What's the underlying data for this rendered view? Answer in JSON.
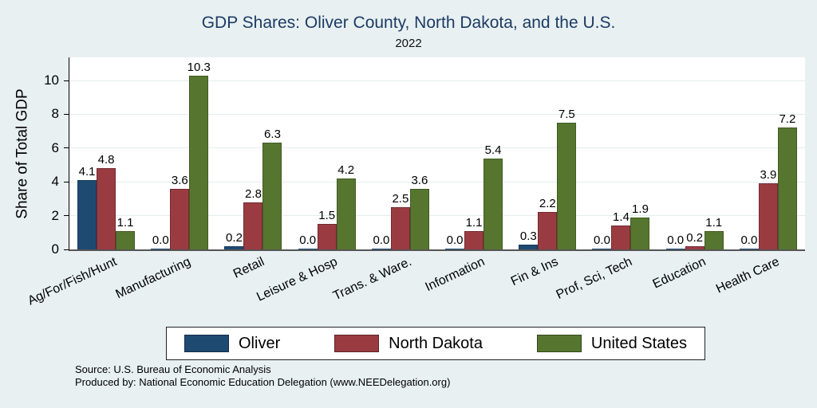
{
  "header": {
    "title": "GDP Shares: Oliver County, North Dakota, and the U.S.",
    "subtitle": "2022"
  },
  "chart_data": {
    "type": "bar",
    "title": "GDP Shares: Oliver County, North Dakota, and the U.S.",
    "subtitle": "2022",
    "xlabel": "",
    "ylabel": "Share of Total GDP",
    "ylim": [
      0,
      11.4
    ],
    "yticks": [
      0,
      2,
      4,
      6,
      8,
      10
    ],
    "grid": true,
    "value_labels": true,
    "legend_position": "bottom",
    "categories": [
      "Ag/For/Fish/Hunt",
      "Manufacturing",
      "Retail",
      "Leisure & Hosp",
      "Trans. & Ware.",
      "Information",
      "Fin & Ins",
      "Prof, Sci, Tech",
      "Education",
      "Health Care"
    ],
    "series": [
      {
        "name": "Oliver",
        "color": "#1e4a72",
        "border": "#163a5c",
        "values": [
          4.1,
          0.0,
          0.2,
          0.0,
          0.0,
          0.0,
          0.3,
          0.0,
          0.0,
          0.0
        ]
      },
      {
        "name": "North Dakota",
        "color": "#9a3b42",
        "border": "#722a30",
        "values": [
          4.8,
          3.6,
          2.8,
          1.5,
          2.5,
          1.1,
          2.2,
          1.4,
          0.2,
          3.9
        ]
      },
      {
        "name": "United States",
        "color": "#567630",
        "border": "#425a24",
        "values": [
          1.1,
          10.3,
          6.3,
          4.2,
          3.6,
          5.4,
          7.5,
          1.9,
          1.1,
          7.2
        ]
      }
    ]
  },
  "footer": {
    "source": "Source: U.S. Bureau of Economic Analysis",
    "produced_by": "Produced by: National Economic Education Delegation (www.NEEDelegation.org)"
  },
  "colors": {
    "background": "#e8f0f2",
    "plot_background": "#ffffff",
    "title_text": "#1c3b63",
    "gridline": "#e2edee",
    "x_axis_line": "#555555",
    "y_axis_line": "#000000"
  }
}
